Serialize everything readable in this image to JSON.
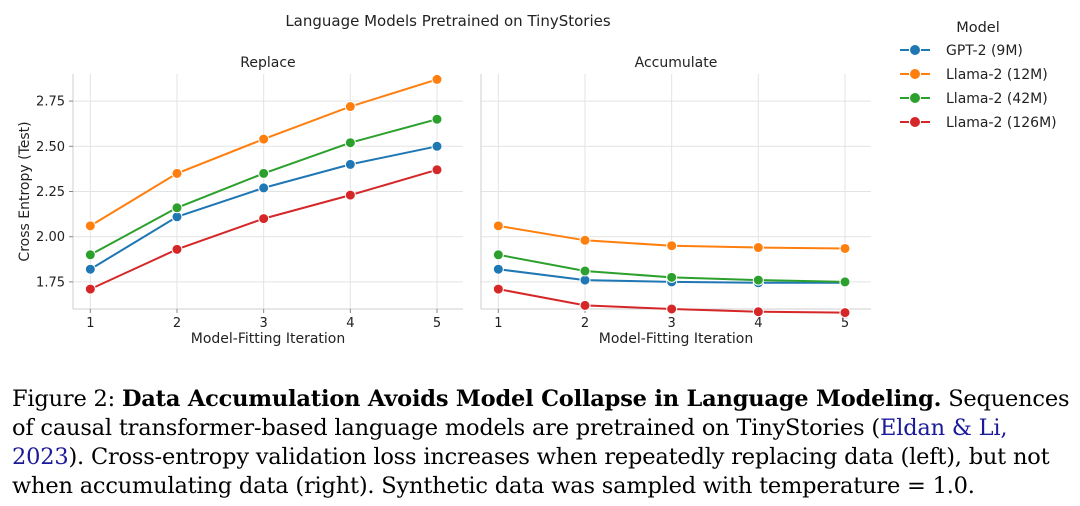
{
  "figure": {
    "suptitle": "Language Models Pretrained on TinyStories"
  },
  "chart_data": [
    {
      "type": "line",
      "title": "Replace",
      "xlabel": "Model-Fitting Iteration",
      "ylabel": "Cross Entropy (Test)",
      "x": [
        1,
        2,
        3,
        4,
        5
      ],
      "xlim": [
        0.8,
        5.3
      ],
      "ylim": [
        1.6,
        2.9
      ],
      "yticks": [
        1.75,
        2.0,
        2.25,
        2.5,
        2.75
      ],
      "ytick_labels": [
        "1.75",
        "2.00",
        "2.25",
        "2.50",
        "2.75"
      ],
      "xtick_labels": [
        "1",
        "2",
        "3",
        "4",
        "5"
      ],
      "grid": true,
      "series": [
        {
          "name": "GPT-2 (9M)",
          "color": "#1f77b4",
          "values": [
            1.82,
            2.11,
            2.27,
            2.4,
            2.5
          ]
        },
        {
          "name": "Llama-2 (12M)",
          "color": "#ff7f0e",
          "values": [
            2.06,
            2.35,
            2.54,
            2.72,
            2.87
          ]
        },
        {
          "name": "Llama-2 (42M)",
          "color": "#2ca02c",
          "values": [
            1.9,
            2.16,
            2.35,
            2.52,
            2.65
          ]
        },
        {
          "name": "Llama-2 (126M)",
          "color": "#d62728",
          "values": [
            1.71,
            1.93,
            2.1,
            2.23,
            2.37
          ]
        }
      ]
    },
    {
      "type": "line",
      "title": "Accumulate",
      "xlabel": "Model-Fitting Iteration",
      "ylabel": "",
      "x": [
        1,
        2,
        3,
        4,
        5
      ],
      "xlim": [
        0.8,
        5.3
      ],
      "ylim": [
        1.6,
        2.9
      ],
      "yticks": [
        1.75,
        2.0,
        2.25,
        2.5,
        2.75
      ],
      "xtick_labels": [
        "1",
        "2",
        "3",
        "4",
        "5"
      ],
      "grid": true,
      "series": [
        {
          "name": "GPT-2 (9M)",
          "color": "#1f77b4",
          "values": [
            1.82,
            1.76,
            1.75,
            1.745,
            1.745
          ]
        },
        {
          "name": "Llama-2 (12M)",
          "color": "#ff7f0e",
          "values": [
            2.06,
            1.98,
            1.95,
            1.94,
            1.935
          ]
        },
        {
          "name": "Llama-2 (42M)",
          "color": "#2ca02c",
          "values": [
            1.9,
            1.81,
            1.775,
            1.76,
            1.75
          ]
        },
        {
          "name": "Llama-2 (126M)",
          "color": "#d62728",
          "values": [
            1.71,
            1.62,
            1.6,
            1.585,
            1.58
          ]
        }
      ]
    }
  ],
  "legend": {
    "title": "Model",
    "placement": "right",
    "entries": [
      "GPT-2 (9M)",
      "Llama-2 (12M)",
      "Llama-2 (42M)",
      "Llama-2 (126M)"
    ]
  },
  "caption": {
    "label": "Figure 2:",
    "bold_title": "Data Accumulation Avoids Model Collapse in Language Modeling.",
    "text_before_cite": "Sequences of causal transformer-based language models are pretrained on TinyStories (",
    "cite": "Eldan & Li, 2023",
    "text_after_cite": "). Cross-entropy validation loss increases when repeatedly replacing data (left), but not when accumulating data (right). Synthetic data was sampled with temperature = 1.0."
  }
}
